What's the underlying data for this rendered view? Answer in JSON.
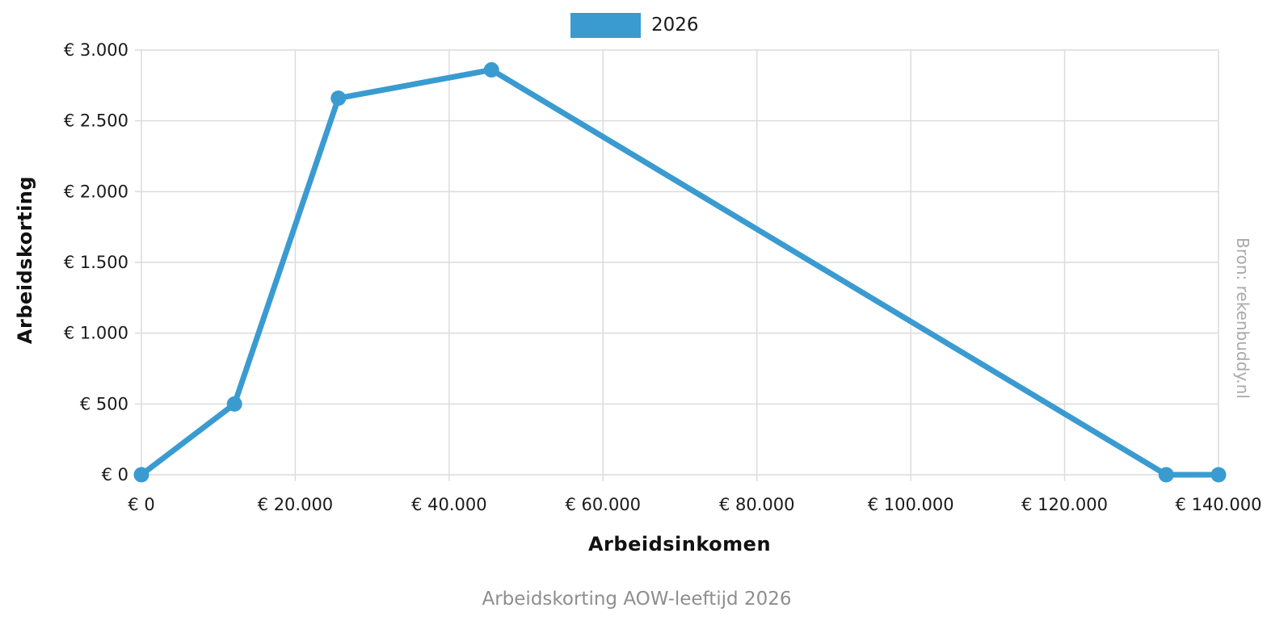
{
  "chart_data": {
    "type": "line",
    "title": "",
    "caption": "Arbeidskorting AOW-leeftijd 2026",
    "source": "Bron: rekenbuddy.nl",
    "xlabel": "Arbeidsinkomen",
    "ylabel": "Arbeidskorting",
    "xlim": [
      0,
      140000
    ],
    "ylim": [
      0,
      3000
    ],
    "grid": true,
    "legend_position": "top-center",
    "x_ticks": [
      {
        "value": 0,
        "label": "€ 0"
      },
      {
        "value": 20000,
        "label": "€ 20.000"
      },
      {
        "value": 40000,
        "label": "€ 40.000"
      },
      {
        "value": 60000,
        "label": "€ 60.000"
      },
      {
        "value": 80000,
        "label": "€ 80.000"
      },
      {
        "value": 100000,
        "label": "€ 100.000"
      },
      {
        "value": 120000,
        "label": "€ 120.000"
      },
      {
        "value": 140000,
        "label": "€ 140.000"
      }
    ],
    "y_ticks": [
      {
        "value": 0,
        "label": "€ 0"
      },
      {
        "value": 500,
        "label": "€ 500"
      },
      {
        "value": 1000,
        "label": "€ 1.000"
      },
      {
        "value": 1500,
        "label": "€ 1.500"
      },
      {
        "value": 2000,
        "label": "€ 2.000"
      },
      {
        "value": 2500,
        "label": "€ 2.500"
      },
      {
        "value": 3000,
        "label": "€ 3.000"
      }
    ],
    "series": [
      {
        "name": "2026",
        "color": "#3a9bd1",
        "points": [
          {
            "x": 0,
            "y": 0
          },
          {
            "x": 12100,
            "y": 500
          },
          {
            "x": 25600,
            "y": 2660
          },
          {
            "x": 45500,
            "y": 2860
          },
          {
            "x": 133200,
            "y": 0
          },
          {
            "x": 140000,
            "y": 0
          }
        ]
      }
    ],
    "colors": {
      "line": "#3a9bd1",
      "grid": "#dcdcdc",
      "tick_text": "#1a1a1a",
      "axis_title_text": "#111111",
      "caption_text": "#8e8e8e",
      "source_text": "#a9a9a9"
    }
  }
}
